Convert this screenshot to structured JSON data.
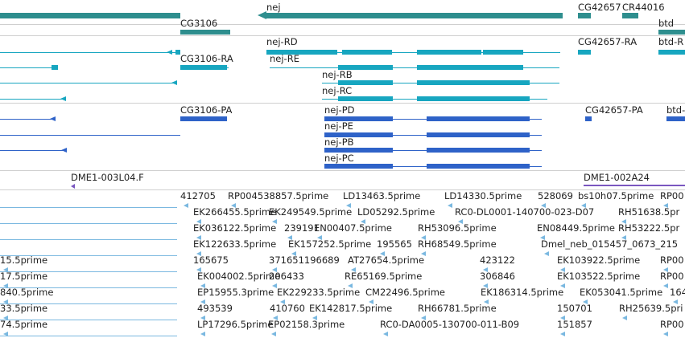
{
  "colors": {
    "gene": "#2e8e8e",
    "transcript_flybase": "#17a6c0",
    "transcript_annot": "#2e62c8",
    "clone": "#7a57c0",
    "est": "#7ab8e0",
    "separator": "#cfcfcf",
    "text": "#222222"
  },
  "tracks": {
    "genes": [
      "nej",
      "CG42657",
      "CR44016",
      "CG3106",
      "btd"
    ],
    "transcripts_a": [
      "nej-RD",
      "CG42657-RA",
      "btd-R",
      "CG3106-RA",
      "nej-RE",
      "nej-RB",
      "nej-RC"
    ],
    "transcripts_b": [
      "CG3106-PA",
      "nej-PD",
      "CG42657-PA",
      "btd-",
      "nej-PE",
      "nej-PB",
      "nej-PC"
    ],
    "clones": [
      "DME1-003L04.F",
      "DME1-002A24"
    ],
    "est_rows": [
      [
        "412705",
        "RP004538857.5prime",
        "LD13463.5prime",
        "LD14330.5prime",
        "528069",
        "bs10h07.5prime",
        "RP00"
      ],
      [
        "EK266455.5prime",
        "EK249549.5prime",
        "LD05292.5prime",
        "RC0-DL0001-140700-023-D07",
        "RH51638.5pr"
      ],
      [
        "EK036122.5prime",
        "239191",
        "EN00407.5prime",
        "RH53096.5prime",
        "EN08449.5prime",
        "RH53222.5pr"
      ],
      [
        "EK122633.5prime",
        "EK157252.5prime",
        "195565",
        "RH68549.5prime",
        "Dmel_neb_015457_0673_215"
      ],
      [
        "15.5prime",
        "165675",
        "371651196689",
        "AT27654.5prime",
        "423122",
        "EK103922.5prime",
        "RP00"
      ],
      [
        "17.5prime",
        "EK004002.5prime",
        "206433",
        "RE65169.5prime",
        "306846",
        "EK103522.5prime",
        "RP00"
      ],
      [
        "840.5prime",
        "EP15955.3prime",
        "EK229233.5prime",
        "CM22496.5prime",
        "EK186314.5prime",
        "EK053041.5prime",
        "164"
      ],
      [
        "33.5prime",
        "493539",
        "410760",
        "EK142817.5prime",
        "RH66781.5prime",
        "150701",
        "RH25639.5pri"
      ],
      [
        "74.5prime",
        "LP17296.5prime",
        "EP02158.3prime",
        "RC0-DA0005-130700-011-B09",
        "151857",
        "RP00"
      ]
    ]
  }
}
